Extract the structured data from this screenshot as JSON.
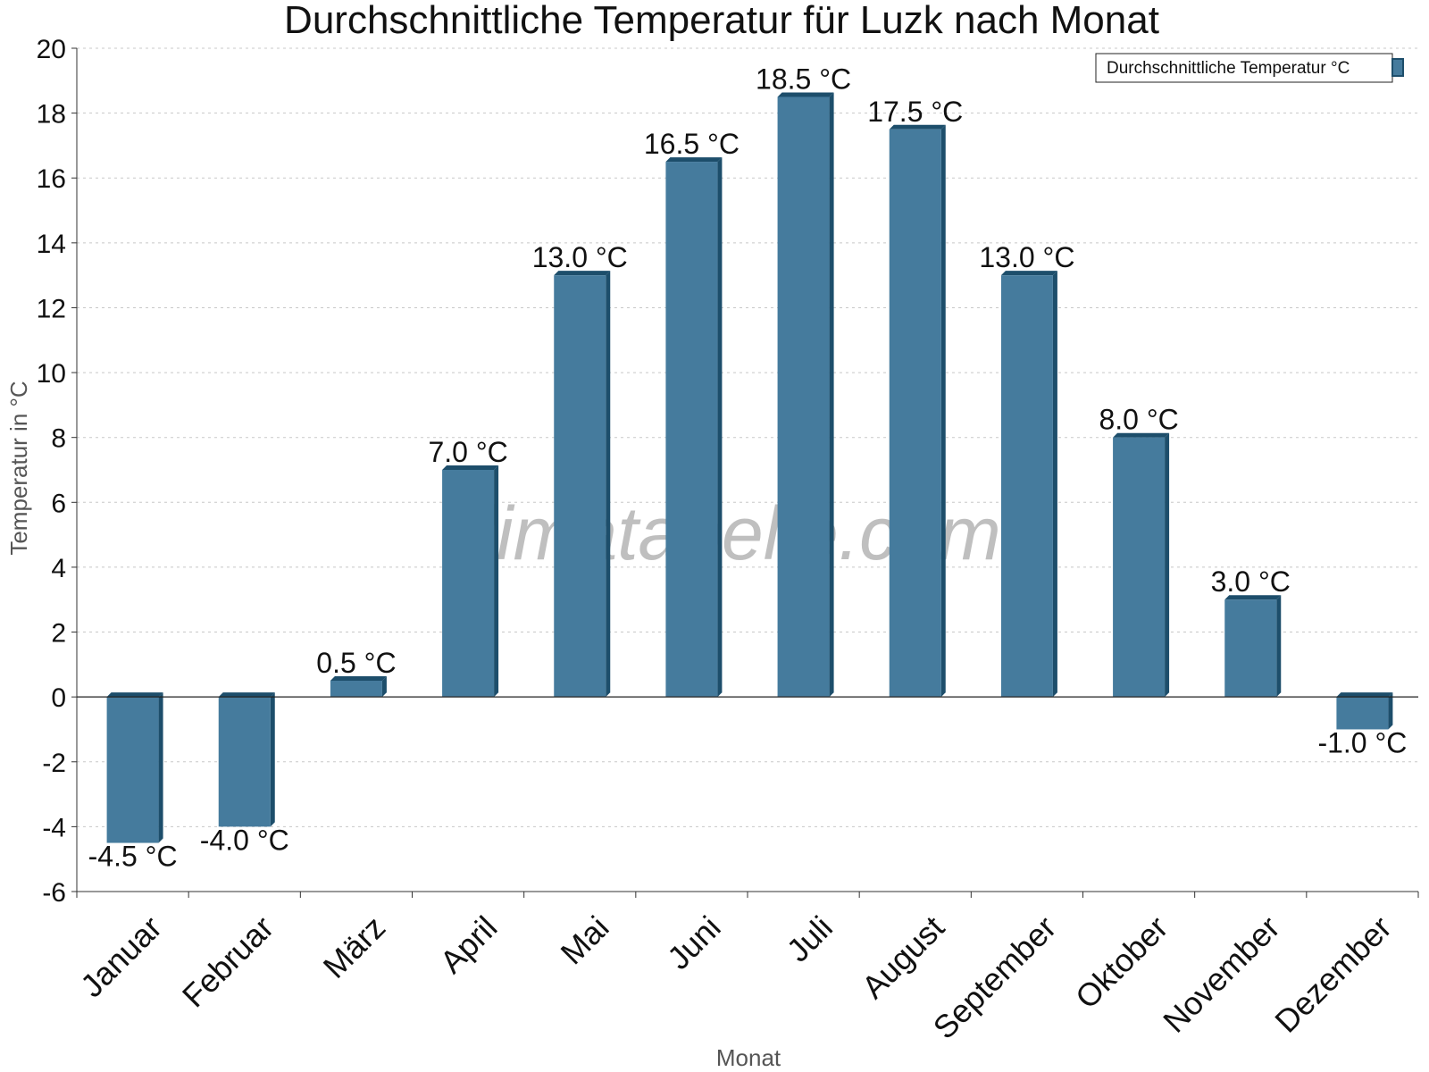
{
  "chart_data": {
    "type": "bar",
    "title": "Durchschnittliche Temperatur für Luzk nach Monat",
    "xlabel": "Monat",
    "ylabel": "Temperatur in °C",
    "ylim": [
      -6,
      20
    ],
    "yticks": [
      -6,
      -4,
      -2,
      0,
      2,
      4,
      6,
      8,
      10,
      12,
      14,
      16,
      18,
      20
    ],
    "grid": true,
    "legend_position": "top-right",
    "categories": [
      "Januar",
      "Februar",
      "März",
      "April",
      "Mai",
      "Juni",
      "Juli",
      "August",
      "September",
      "Oktober",
      "November",
      "Dezember"
    ],
    "series": [
      {
        "name": "Durchschnittliche Temperatur °C",
        "color": "#457b9d",
        "values": [
          -4.5,
          -4.0,
          0.5,
          7.0,
          13.0,
          16.5,
          18.5,
          17.5,
          13.0,
          8.0,
          3.0,
          -1.0
        ],
        "labels": [
          "-4.5 °C",
          "-4.0 °C",
          "0.5 °C",
          "7.0 °C",
          "13.0 °C",
          "16.5 °C",
          "18.5 °C",
          "17.5 °C",
          "13.0 °C",
          "8.0 °C",
          "3.0 °C",
          "-1.0 °C"
        ]
      }
    ],
    "watermark": "klimatabelle.com"
  },
  "colors": {
    "bar": "#457b9d",
    "bar_shade": "#1d4e6b",
    "grid": "#c8c8c8"
  }
}
